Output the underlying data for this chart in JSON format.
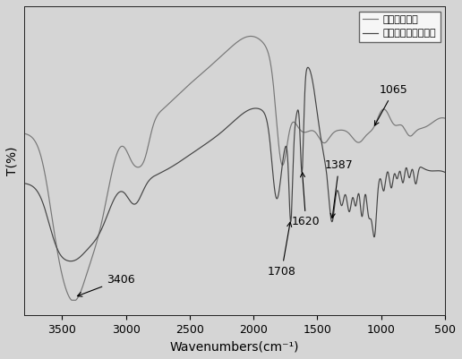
{
  "xlabel": "Wavenumbers(cm⁻¹)",
  "ylabel": "T(%)",
  "legend_labels": [
    "水热生物质炭",
    "罧基化水热生物质炭"
  ],
  "line1_color": "#888888",
  "line2_color": "#555555",
  "background_color": "#e0e0e0",
  "plot_bg": "#e0e0e0",
  "xticks": [
    3500,
    3000,
    2500,
    2000,
    1500,
    1000,
    500
  ],
  "xlim": [
    3800,
    500
  ]
}
